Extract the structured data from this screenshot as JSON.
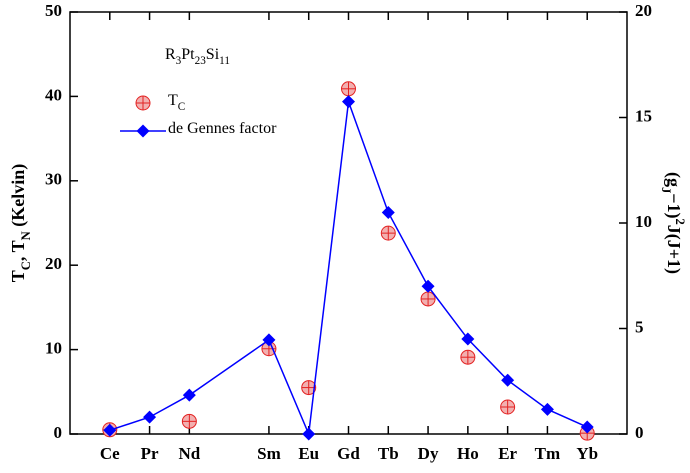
{
  "chart_data": {
    "type": "line",
    "annotation": [
      "R",
      "3",
      "Pt",
      "23",
      "Si",
      "11"
    ],
    "y_label": [
      "T",
      "C",
      ", T",
      "N",
      " (Kelvin)"
    ],
    "y2_label": [
      "(g",
      "J",
      "−1)",
      "2",
      "J(J+1)"
    ],
    "x": [
      58,
      59,
      60,
      62,
      63,
      64,
      65,
      66,
      67,
      68,
      69,
      70
    ],
    "xlim": [
      57,
      71
    ],
    "xticks": [
      {
        "value": 58,
        "label": "Ce"
      },
      {
        "value": 59,
        "label": "Pr"
      },
      {
        "value": 60,
        "label": "Nd"
      },
      {
        "value": 62,
        "label": "Sm"
      },
      {
        "value": 63,
        "label": "Eu"
      },
      {
        "value": 64,
        "label": "Gd"
      },
      {
        "value": 65,
        "label": "Tb"
      },
      {
        "value": 66,
        "label": "Dy"
      },
      {
        "value": 67,
        "label": "Ho"
      },
      {
        "value": 68,
        "label": "Er"
      },
      {
        "value": 69,
        "label": "Tm"
      },
      {
        "value": 70,
        "label": "Yb"
      }
    ],
    "ylim": [
      0,
      50
    ],
    "yticks": [
      0,
      10,
      20,
      30,
      40,
      50
    ],
    "y2lim": [
      0,
      20
    ],
    "y2ticks": [
      0,
      5,
      10,
      15,
      20
    ],
    "series": [
      {
        "name": [
          "T",
          "C"
        ],
        "color": "#e32222",
        "fill": "#f2b0b0",
        "style": "markers",
        "values": [
          0.5,
          null,
          1.5,
          10.1,
          5.5,
          40.9,
          23.8,
          16.0,
          9.1,
          3.2,
          null,
          0.1
        ]
      },
      {
        "name": [
          "de Gennes factor"
        ],
        "color": "#0000ff",
        "style": "line-diamonds",
        "axis": "y2",
        "values": [
          0.18,
          0.8,
          1.84,
          4.46,
          0,
          15.75,
          10.5,
          7.0,
          4.5,
          2.55,
          1.17,
          0.33
        ]
      }
    ]
  }
}
